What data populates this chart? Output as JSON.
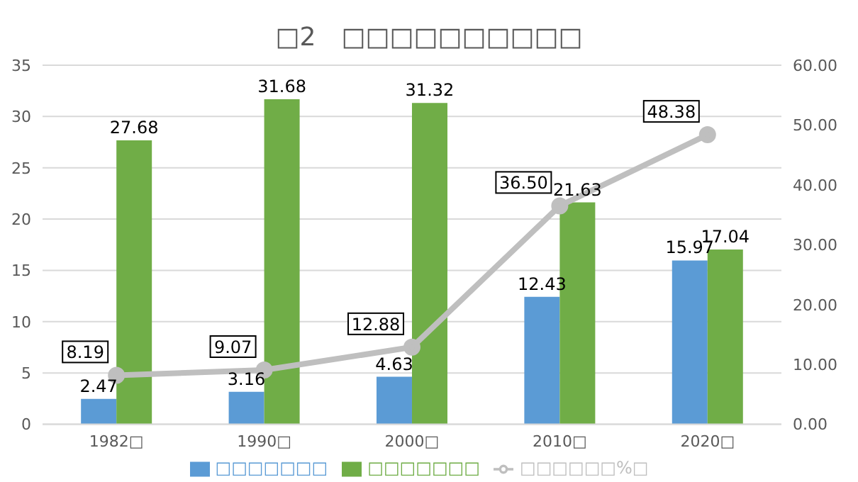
{
  "chart_data": {
    "type": "bar",
    "title": "□2　□□□□□□□□□□",
    "categories": [
      "1982□",
      "1990□",
      "2000□",
      "2010□",
      "2020□"
    ],
    "series": [
      {
        "name": "□□□□□□□",
        "color": "#5b9bd5",
        "values": [
          2.47,
          3.16,
          4.63,
          12.43,
          15.97
        ],
        "value_labels": [
          "2.47",
          "3.16",
          "4.63",
          "12.43",
          "15.97"
        ]
      },
      {
        "name": "□□□□□□□",
        "color": "#70ad47",
        "values": [
          27.68,
          31.68,
          31.32,
          21.63,
          17.04
        ],
        "value_labels": [
          "27.68",
          "31.68",
          "31.32",
          "21.63",
          "17.04"
        ]
      },
      {
        "name": "□□□□□□%□",
        "type": "line",
        "axis": "y2",
        "color": "#bfbfbf",
        "marker": "circle",
        "values": [
          8.19,
          9.07,
          12.88,
          36.5,
          48.38
        ],
        "value_labels": [
          "8.19",
          "9.07",
          "12.88",
          "36.50",
          "48.38"
        ]
      }
    ],
    "ylim": [
      0,
      35
    ],
    "yticks": [
      0,
      5,
      10,
      15,
      20,
      25,
      30,
      35
    ],
    "y2lim": [
      0,
      60
    ],
    "y2ticks": [
      {
        "value": 0,
        "label": "0.00"
      },
      {
        "value": 10,
        "label": "10.00"
      },
      {
        "value": 20,
        "label": "20.00"
      },
      {
        "value": 30,
        "label": "30.00"
      },
      {
        "value": 40,
        "label": "40.00"
      },
      {
        "value": 50,
        "label": "50.00"
      },
      {
        "value": 60,
        "label": "60.00"
      }
    ],
    "grid": "y",
    "legend": "bottom"
  }
}
